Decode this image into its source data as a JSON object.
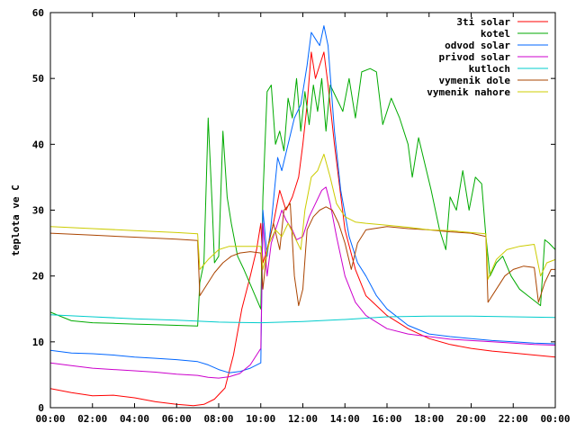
{
  "chart_data": {
    "type": "line",
    "xlabel": "",
    "ylabel": "teplota ve C",
    "xlim": [
      0,
      24
    ],
    "ylim": [
      0,
      60
    ],
    "xticks": [
      "00:00",
      "02:00",
      "04:00",
      "06:00",
      "08:00",
      "10:00",
      "12:00",
      "14:00",
      "16:00",
      "18:00",
      "20:00",
      "22:00",
      "00:00"
    ],
    "yticks": [
      "0",
      "10",
      "20",
      "30",
      "40",
      "50",
      "60"
    ],
    "grid": false,
    "legend_position": "top-right",
    "series": [
      {
        "name": "3ti solar",
        "color": "#ff0000",
        "points": [
          [
            0,
            2.9
          ],
          [
            1,
            2.3
          ],
          [
            2,
            1.8
          ],
          [
            3,
            1.9
          ],
          [
            4,
            1.5
          ],
          [
            5,
            0.9
          ],
          [
            6,
            0.5
          ],
          [
            6.8,
            0.3
          ],
          [
            7.3,
            0.5
          ],
          [
            7.8,
            1.3
          ],
          [
            8.3,
            3
          ],
          [
            8.7,
            8
          ],
          [
            9.1,
            15
          ],
          [
            9.5,
            20
          ],
          [
            9.8,
            24
          ],
          [
            10,
            28
          ],
          [
            10.1,
            22
          ],
          [
            10.3,
            24
          ],
          [
            10.6,
            28
          ],
          [
            10.9,
            33
          ],
          [
            11.2,
            30
          ],
          [
            11.5,
            32
          ],
          [
            11.8,
            35
          ],
          [
            12,
            40
          ],
          [
            12.2,
            46
          ],
          [
            12.4,
            54
          ],
          [
            12.6,
            50
          ],
          [
            12.8,
            52
          ],
          [
            13,
            54
          ],
          [
            13.2,
            49
          ],
          [
            13.5,
            40
          ],
          [
            14,
            27
          ],
          [
            14.5,
            21
          ],
          [
            15,
            17
          ],
          [
            16,
            14
          ],
          [
            17,
            12
          ],
          [
            18,
            10.5
          ],
          [
            19,
            9.6
          ],
          [
            20,
            9
          ],
          [
            21,
            8.6
          ],
          [
            22,
            8.3
          ],
          [
            23,
            8
          ],
          [
            24,
            7.7
          ]
        ]
      },
      {
        "name": "kotel",
        "color": "#00aa00",
        "points": [
          [
            0,
            14.5
          ],
          [
            1,
            13.2
          ],
          [
            2,
            12.9
          ],
          [
            3,
            12.8
          ],
          [
            4,
            12.7
          ],
          [
            5,
            12.6
          ],
          [
            6,
            12.5
          ],
          [
            7,
            12.4
          ],
          [
            7.1,
            19
          ],
          [
            7.3,
            22
          ],
          [
            7.5,
            44
          ],
          [
            7.7,
            30
          ],
          [
            7.8,
            22
          ],
          [
            8,
            23
          ],
          [
            8.2,
            42
          ],
          [
            8.4,
            32
          ],
          [
            8.6,
            28
          ],
          [
            8.9,
            23
          ],
          [
            9.2,
            21
          ],
          [
            9.6,
            18
          ],
          [
            10,
            15
          ],
          [
            10.1,
            32
          ],
          [
            10.3,
            48
          ],
          [
            10.5,
            49
          ],
          [
            10.7,
            40
          ],
          [
            10.9,
            42
          ],
          [
            11.1,
            39
          ],
          [
            11.3,
            47
          ],
          [
            11.5,
            44
          ],
          [
            11.7,
            50
          ],
          [
            11.9,
            42
          ],
          [
            12.1,
            48
          ],
          [
            12.3,
            43
          ],
          [
            12.5,
            49
          ],
          [
            12.7,
            45
          ],
          [
            12.9,
            50
          ],
          [
            13.1,
            42
          ],
          [
            13.3,
            49
          ],
          [
            13.6,
            47
          ],
          [
            13.9,
            45
          ],
          [
            14.2,
            50
          ],
          [
            14.5,
            44
          ],
          [
            14.8,
            51
          ],
          [
            15.2,
            51.5
          ],
          [
            15.5,
            51
          ],
          [
            15.8,
            43
          ],
          [
            16.2,
            47
          ],
          [
            16.6,
            44
          ],
          [
            17,
            40
          ],
          [
            17.2,
            35
          ],
          [
            17.5,
            41
          ],
          [
            17.8,
            37
          ],
          [
            18.1,
            33
          ],
          [
            18.5,
            27
          ],
          [
            18.8,
            24
          ],
          [
            19,
            32
          ],
          [
            19.3,
            30
          ],
          [
            19.6,
            36
          ],
          [
            19.9,
            30
          ],
          [
            20.2,
            35
          ],
          [
            20.5,
            34
          ],
          [
            20.7,
            26
          ],
          [
            20.9,
            20
          ],
          [
            21.2,
            22
          ],
          [
            21.5,
            23
          ],
          [
            21.9,
            20
          ],
          [
            22.3,
            18
          ],
          [
            22.7,
            17
          ],
          [
            23.1,
            16
          ],
          [
            23.3,
            15.5
          ],
          [
            23.5,
            25.5
          ],
          [
            23.7,
            25
          ],
          [
            24,
            24
          ]
        ]
      },
      {
        "name": "odvod solar",
        "color": "#0066ff",
        "points": [
          [
            0,
            8.7
          ],
          [
            1,
            8.3
          ],
          [
            2,
            8.2
          ],
          [
            3,
            8
          ],
          [
            4,
            7.7
          ],
          [
            5,
            7.5
          ],
          [
            6,
            7.3
          ],
          [
            7,
            7
          ],
          [
            7.5,
            6.5
          ],
          [
            8,
            5.8
          ],
          [
            8.5,
            5.3
          ],
          [
            9,
            5.5
          ],
          [
            9.5,
            6
          ],
          [
            10,
            6.8
          ],
          [
            10.1,
            30
          ],
          [
            10.3,
            23
          ],
          [
            10.5,
            28
          ],
          [
            10.8,
            38
          ],
          [
            11,
            36
          ],
          [
            11.3,
            40
          ],
          [
            11.6,
            44
          ],
          [
            11.9,
            46
          ],
          [
            12.2,
            52
          ],
          [
            12.4,
            57
          ],
          [
            12.6,
            56
          ],
          [
            12.8,
            55
          ],
          [
            13,
            58
          ],
          [
            13.2,
            55
          ],
          [
            13.5,
            42
          ],
          [
            13.8,
            33
          ],
          [
            14.2,
            26
          ],
          [
            14.6,
            22
          ],
          [
            15,
            20
          ],
          [
            15.5,
            17
          ],
          [
            16,
            15
          ],
          [
            17,
            12.5
          ],
          [
            18,
            11.2
          ],
          [
            19,
            10.8
          ],
          [
            20,
            10.5
          ],
          [
            21,
            10.2
          ],
          [
            22,
            10
          ],
          [
            23,
            9.8
          ],
          [
            24,
            9.7
          ]
        ]
      },
      {
        "name": "privod solar",
        "color": "#cc00cc",
        "points": [
          [
            0,
            6.8
          ],
          [
            1,
            6.4
          ],
          [
            2,
            6
          ],
          [
            3,
            5.8
          ],
          [
            4,
            5.6
          ],
          [
            5,
            5.4
          ],
          [
            6,
            5.1
          ],
          [
            7,
            4.9
          ],
          [
            7.5,
            4.6
          ],
          [
            8,
            4.5
          ],
          [
            8.5,
            4.7
          ],
          [
            9,
            5.2
          ],
          [
            9.5,
            6.5
          ],
          [
            10,
            9
          ],
          [
            10.1,
            28
          ],
          [
            10.3,
            20
          ],
          [
            10.5,
            25
          ],
          [
            10.8,
            28
          ],
          [
            11,
            30
          ],
          [
            11.2,
            28.5
          ],
          [
            11.5,
            27
          ],
          [
            11.7,
            25.5
          ],
          [
            12,
            26
          ],
          [
            12.3,
            29
          ],
          [
            12.6,
            31
          ],
          [
            12.9,
            33
          ],
          [
            13.1,
            33.5
          ],
          [
            13.3,
            31
          ],
          [
            13.6,
            26
          ],
          [
            14,
            20
          ],
          [
            14.5,
            16
          ],
          [
            15,
            14
          ],
          [
            15.5,
            13
          ],
          [
            16,
            12
          ],
          [
            17,
            11.2
          ],
          [
            18,
            10.8
          ],
          [
            19,
            10.4
          ],
          [
            20,
            10.2
          ],
          [
            21,
            10
          ],
          [
            22,
            9.8
          ],
          [
            23,
            9.6
          ],
          [
            24,
            9.5
          ]
        ]
      },
      {
        "name": "kutloch",
        "color": "#00cccc",
        "points": [
          [
            0,
            14.1
          ],
          [
            2,
            13.8
          ],
          [
            4,
            13.5
          ],
          [
            6,
            13.3
          ],
          [
            8,
            13
          ],
          [
            10,
            12.9
          ],
          [
            12,
            13.1
          ],
          [
            14,
            13.4
          ],
          [
            16,
            13.8
          ],
          [
            18,
            13.9
          ],
          [
            20,
            13.9
          ],
          [
            22,
            13.8
          ],
          [
            24,
            13.7
          ]
        ]
      },
      {
        "name": "vymenik dole",
        "color": "#aa4400",
        "points": [
          [
            0,
            26.5
          ],
          [
            2,
            26.2
          ],
          [
            4,
            25.9
          ],
          [
            6,
            25.6
          ],
          [
            7,
            25.4
          ],
          [
            7.1,
            17
          ],
          [
            7.4,
            18.5
          ],
          [
            7.8,
            20.5
          ],
          [
            8.2,
            22
          ],
          [
            8.6,
            23
          ],
          [
            9,
            23.5
          ],
          [
            9.5,
            23.7
          ],
          [
            10,
            23.5
          ],
          [
            10.1,
            18
          ],
          [
            10.3,
            24
          ],
          [
            10.6,
            28
          ],
          [
            10.9,
            24
          ],
          [
            11.1,
            30
          ],
          [
            11.4,
            31
          ],
          [
            11.6,
            20
          ],
          [
            11.8,
            15.5
          ],
          [
            12,
            18
          ],
          [
            12.2,
            27
          ],
          [
            12.5,
            29
          ],
          [
            12.8,
            30
          ],
          [
            13.1,
            30.5
          ],
          [
            13.4,
            30
          ],
          [
            13.7,
            28
          ],
          [
            14,
            25
          ],
          [
            14.3,
            21
          ],
          [
            14.6,
            25
          ],
          [
            15,
            27
          ],
          [
            16,
            27.5
          ],
          [
            17,
            27.2
          ],
          [
            18,
            27
          ],
          [
            19,
            26.7
          ],
          [
            20,
            26.5
          ],
          [
            20.7,
            26
          ],
          [
            20.8,
            16
          ],
          [
            21.2,
            18
          ],
          [
            21.6,
            20
          ],
          [
            22,
            21
          ],
          [
            22.5,
            21.5
          ],
          [
            23,
            21.3
          ],
          [
            23.2,
            16
          ],
          [
            23.5,
            19
          ],
          [
            23.8,
            21
          ],
          [
            24,
            21
          ]
        ]
      },
      {
        "name": "vymenik nahore",
        "color": "#cccc00",
        "points": [
          [
            0,
            27.5
          ],
          [
            2,
            27.2
          ],
          [
            4,
            26.9
          ],
          [
            6,
            26.6
          ],
          [
            7,
            26.4
          ],
          [
            7.1,
            21
          ],
          [
            7.5,
            22.5
          ],
          [
            8,
            24
          ],
          [
            8.5,
            24.5
          ],
          [
            9,
            24.5
          ],
          [
            9.5,
            24.5
          ],
          [
            10,
            24.5
          ],
          [
            10.1,
            21
          ],
          [
            10.4,
            25
          ],
          [
            10.7,
            27
          ],
          [
            11,
            26
          ],
          [
            11.3,
            28
          ],
          [
            11.6,
            26
          ],
          [
            11.9,
            24
          ],
          [
            12.1,
            30
          ],
          [
            12.4,
            35
          ],
          [
            12.7,
            36
          ],
          [
            13,
            38.5
          ],
          [
            13.3,
            35
          ],
          [
            13.6,
            31
          ],
          [
            14,
            29
          ],
          [
            14.5,
            28.2
          ],
          [
            15,
            28
          ],
          [
            16,
            27.7
          ],
          [
            17,
            27.4
          ],
          [
            18,
            27
          ],
          [
            19,
            26.9
          ],
          [
            20,
            26.6
          ],
          [
            20.7,
            26.4
          ],
          [
            20.8,
            19.5
          ],
          [
            21.2,
            22.5
          ],
          [
            21.7,
            24
          ],
          [
            22.3,
            24.5
          ],
          [
            23,
            24.8
          ],
          [
            23.3,
            20
          ],
          [
            23.6,
            22
          ],
          [
            24,
            22.5
          ]
        ]
      }
    ]
  }
}
